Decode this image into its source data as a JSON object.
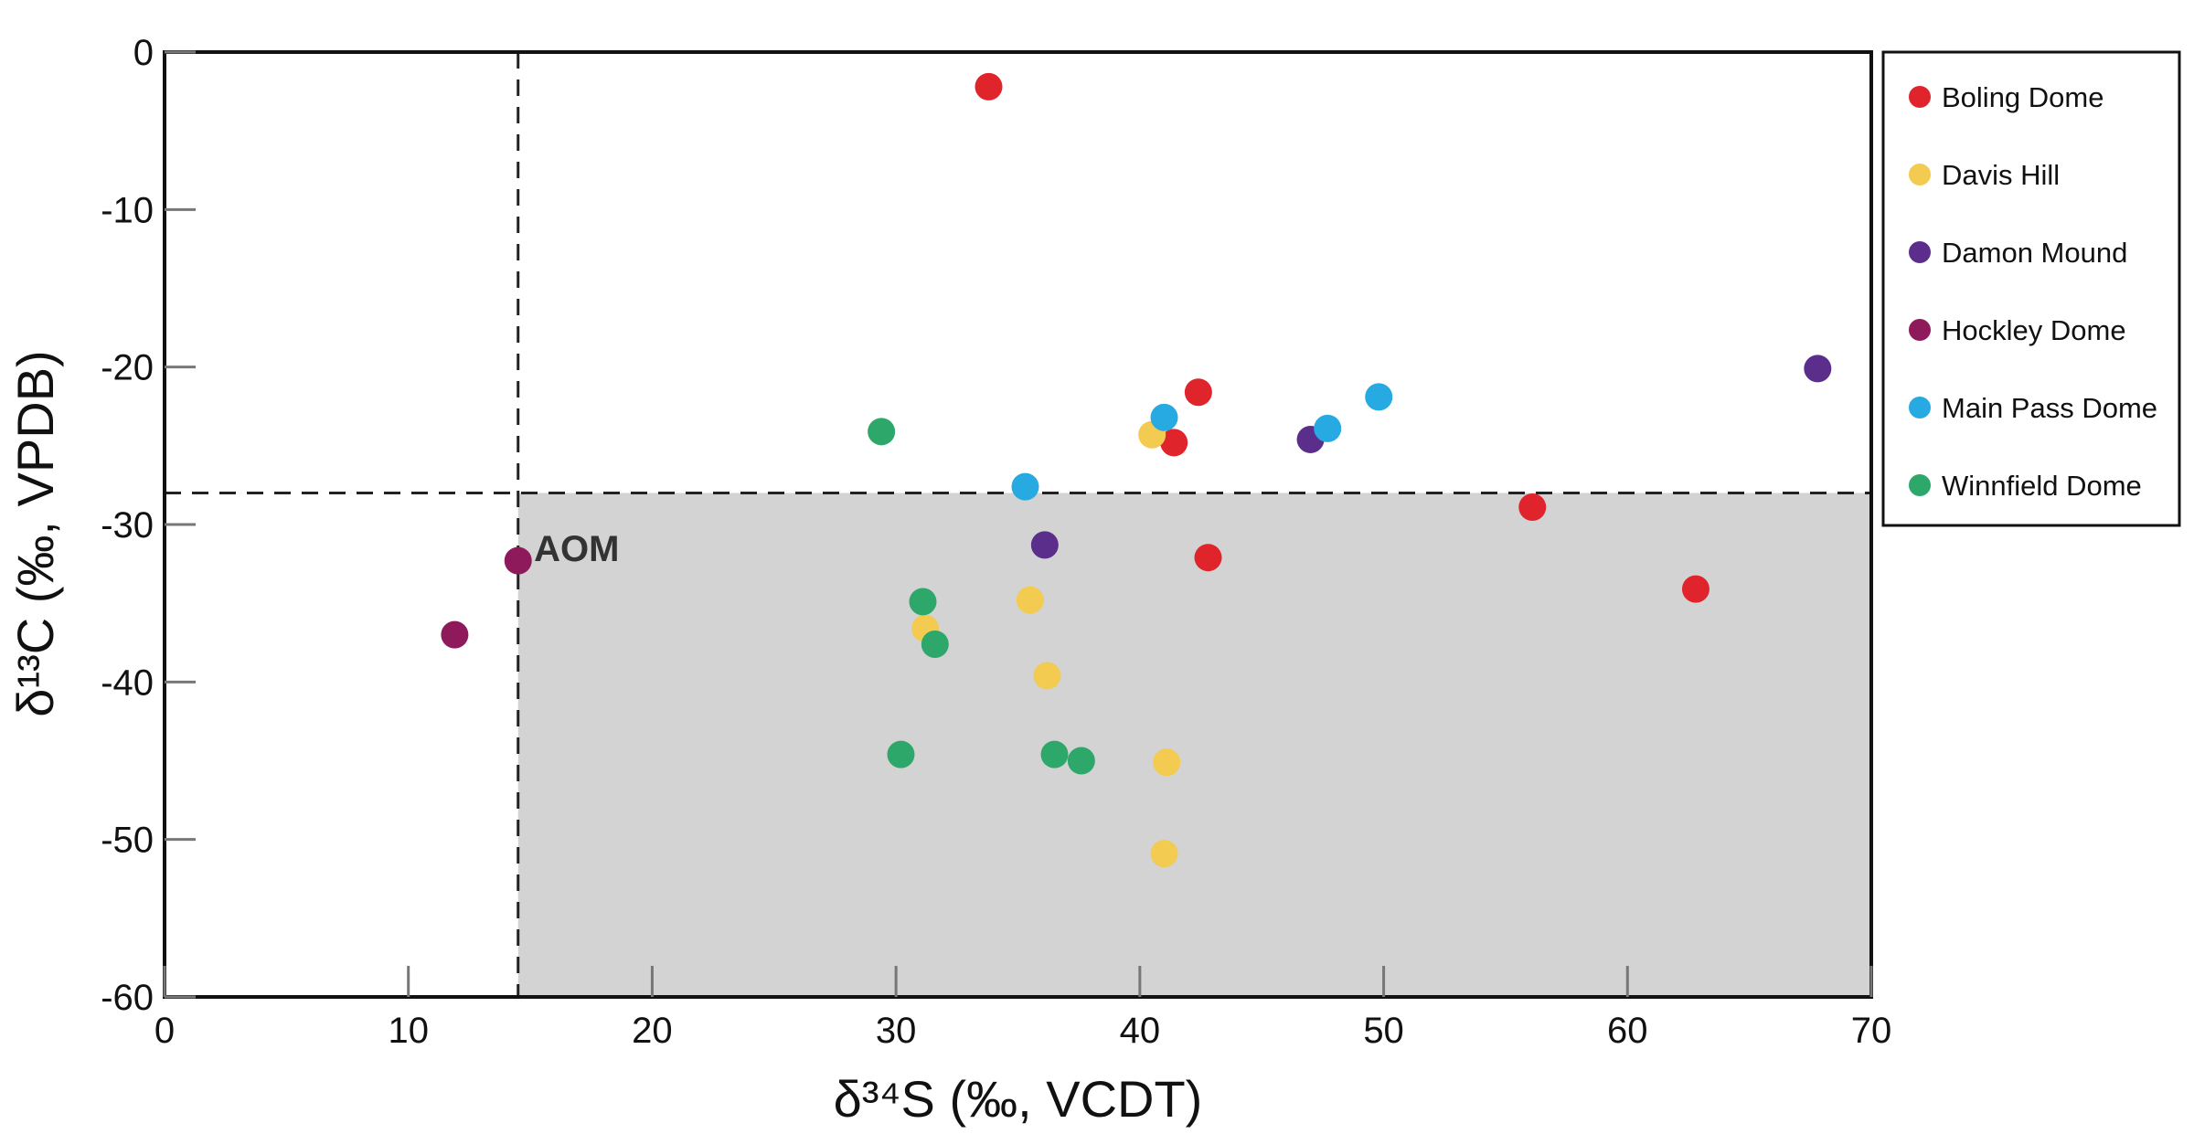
{
  "chart_data": {
    "type": "scatter",
    "title": "",
    "xlabel": "δ³⁴S (‰, VCDT)",
    "ylabel": "δ¹³C (‰, VPDB)",
    "xlim": [
      0,
      70
    ],
    "ylim": [
      -60,
      0
    ],
    "xticks": [
      0,
      10,
      20,
      30,
      40,
      50,
      60,
      70
    ],
    "yticks": [
      0,
      -10,
      -20,
      -30,
      -40,
      -50,
      -60
    ],
    "xtick_labels": [
      "0",
      "10",
      "20",
      "30",
      "40",
      "50",
      "60",
      "70"
    ],
    "ytick_labels": [
      "0",
      "-10",
      "-20",
      "-30",
      "-40",
      "-50",
      "-60"
    ],
    "grid": false,
    "legend_position": "outside-right",
    "threshold_lines": {
      "x": 14.5,
      "y": -28
    },
    "shaded_region": {
      "label": "AOM",
      "x_from": 14.5,
      "x_to": 70,
      "y_from": -60,
      "y_to": -28,
      "color": "#d3d3d3"
    },
    "series": [
      {
        "name": "Boling Dome",
        "color": "#e0242c",
        "points": [
          [
            33.8,
            -2.2
          ],
          [
            42.4,
            -21.6
          ],
          [
            41.4,
            -24.8
          ],
          [
            56.1,
            -28.9
          ],
          [
            42.8,
            -32.1
          ],
          [
            62.8,
            -34.1
          ]
        ]
      },
      {
        "name": "Davis Hill",
        "color": "#f2cb50",
        "points": [
          [
            40.5,
            -24.3
          ],
          [
            35.5,
            -34.8
          ],
          [
            31.2,
            -36.6
          ],
          [
            36.2,
            -39.6
          ],
          [
            41.1,
            -45.1
          ],
          [
            41.0,
            -50.9
          ]
        ]
      },
      {
        "name": "Damon Mound",
        "color": "#5b2e8c",
        "points": [
          [
            67.8,
            -20.1
          ],
          [
            47.0,
            -24.6
          ],
          [
            36.1,
            -31.3
          ]
        ]
      },
      {
        "name": "Hockley Dome",
        "color": "#8e1a5c",
        "points": [
          [
            14.5,
            -32.3
          ],
          [
            11.9,
            -37.0
          ]
        ]
      },
      {
        "name": "Main Pass Dome",
        "color": "#27a9e1",
        "points": [
          [
            49.8,
            -21.9
          ],
          [
            41.0,
            -23.2
          ],
          [
            47.7,
            -23.9
          ],
          [
            35.3,
            -27.6
          ]
        ]
      },
      {
        "name": "Winnfield Dome",
        "color": "#2ea76b",
        "points": [
          [
            29.4,
            -24.1
          ],
          [
            31.1,
            -34.9
          ],
          [
            31.6,
            -37.6
          ],
          [
            30.2,
            -44.6
          ],
          [
            36.5,
            -44.6
          ],
          [
            37.6,
            -45.0
          ]
        ]
      }
    ],
    "annotations": [
      {
        "text": "AOM",
        "x": 15.0,
        "y": -31.5
      }
    ]
  }
}
